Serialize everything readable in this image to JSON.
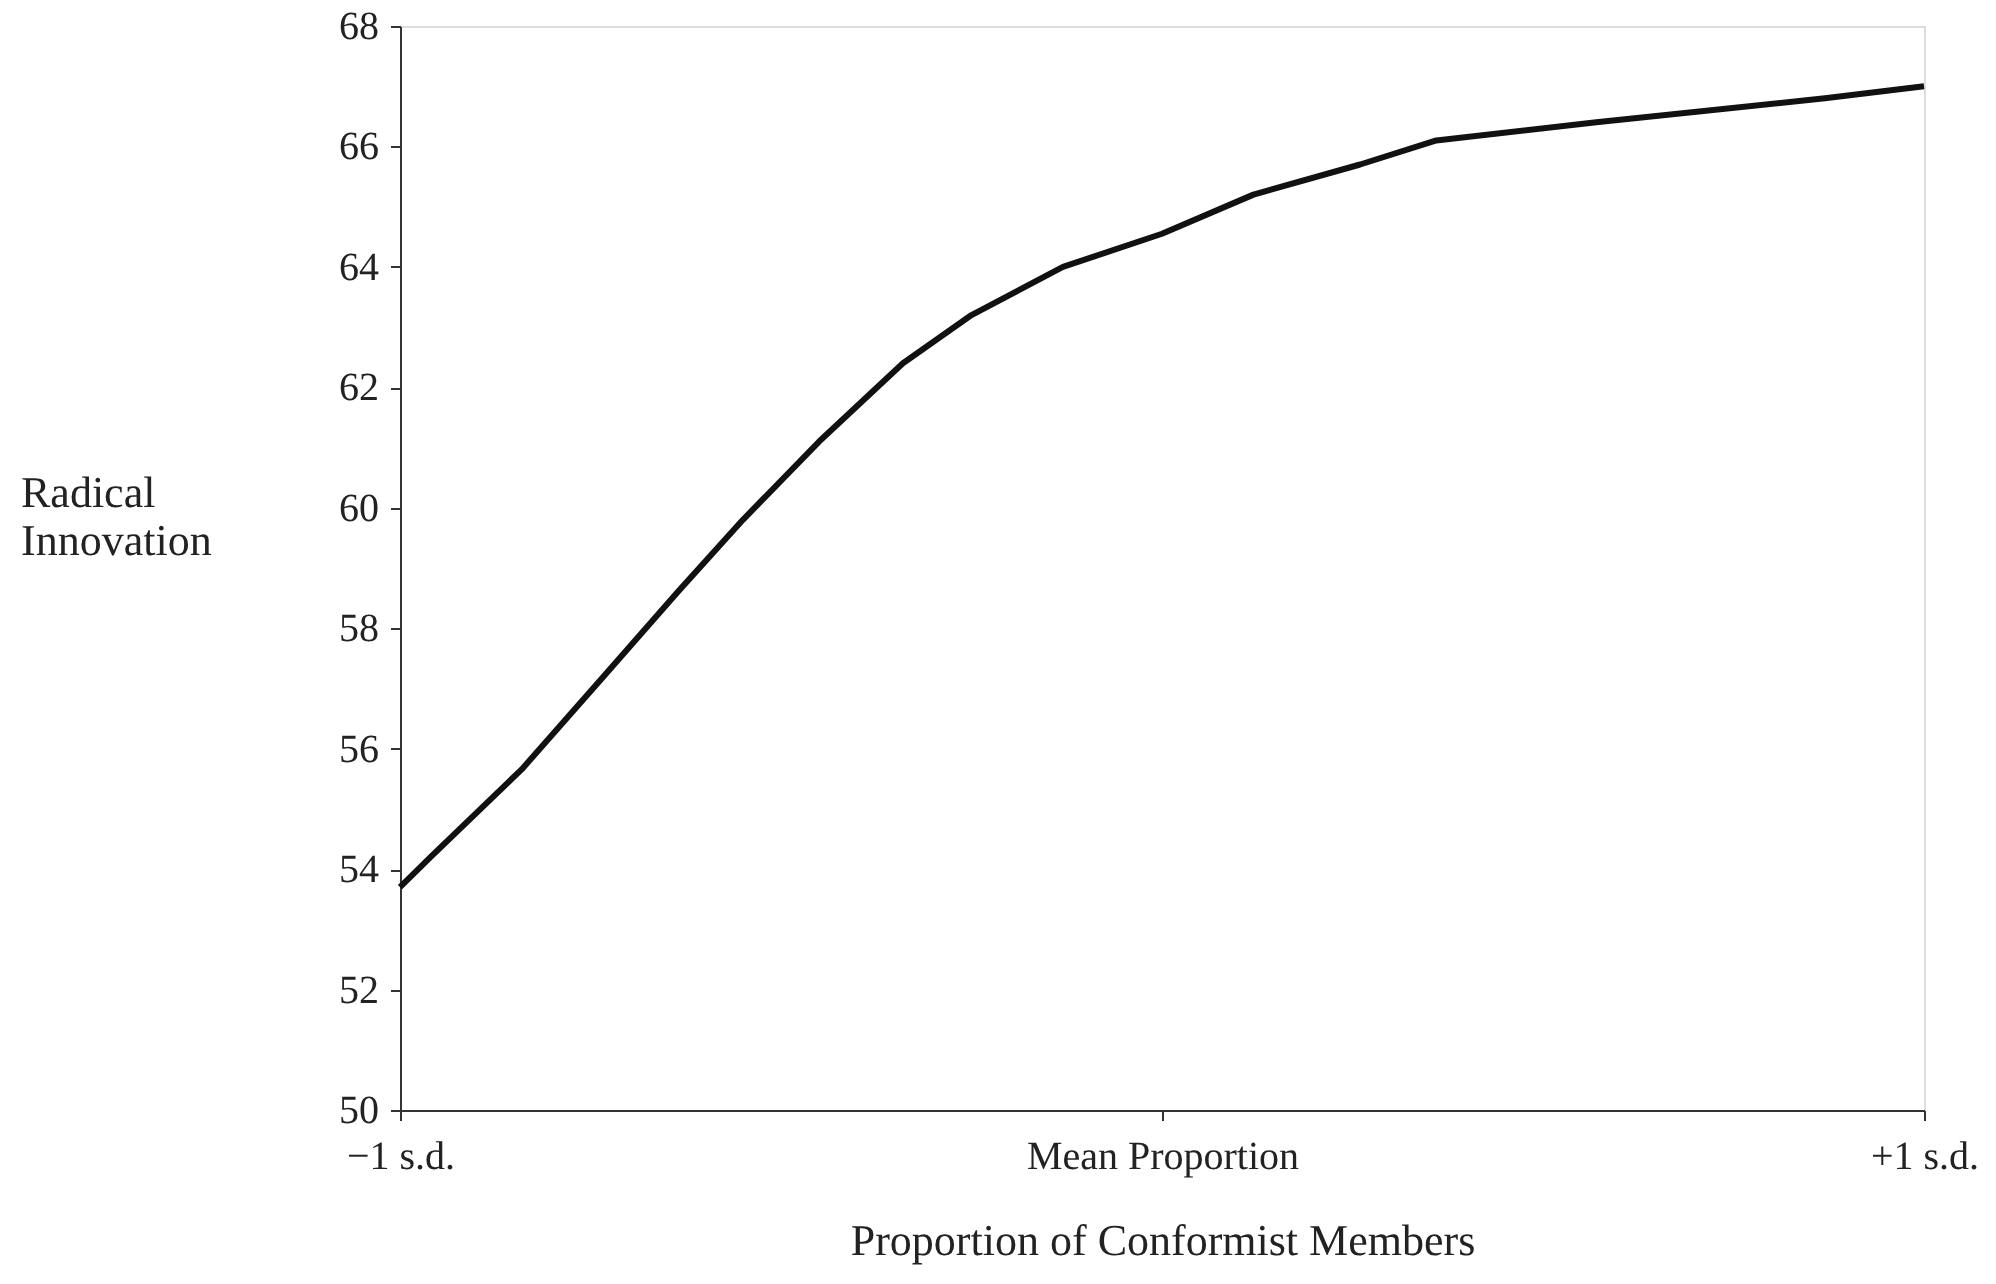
{
  "chart_data": {
    "type": "line",
    "xlabel": "Proportion of Conformist Members",
    "ylabel": "Radical Innovation",
    "x": [
      -1,
      -0.96,
      -0.84,
      -0.73,
      -0.635,
      -0.55,
      -0.45,
      -0.34,
      -0.25,
      -0.13,
      0,
      0.12,
      0.26,
      0.36,
      0.57,
      0.87,
      1
    ],
    "series": [
      {
        "color": "#111111",
        "values": [
          53.7,
          54.2,
          55.66,
          57.24,
          58.61,
          59.8,
          61.1,
          62.4,
          63.2,
          64.0,
          64.55,
          65.2,
          65.7,
          66.1,
          66.4,
          66.8,
          67.0
        ]
      }
    ],
    "xlim": [
      -1,
      1
    ],
    "xticks": [
      {
        "value": -1,
        "label": "−1 s.d."
      },
      {
        "value": 0,
        "label": "Mean Proportion"
      },
      {
        "value": 1,
        "label": "+1 s.d."
      }
    ],
    "ylim": [
      50,
      68
    ],
    "yticks": [
      50,
      52,
      54,
      56,
      58,
      60,
      62,
      64,
      66,
      68
    ],
    "grid": false,
    "marker": "none",
    "line_style": "solid"
  }
}
